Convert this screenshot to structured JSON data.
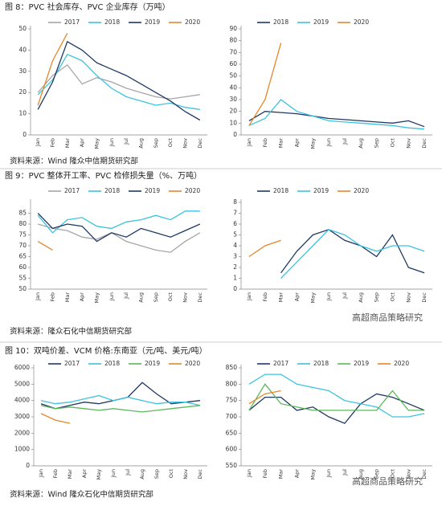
{
  "captions": [
    "图 8：PVC 社会库存、PVC 企业库存（万吨）",
    "图 9：PVC 整体开工率、PVC 检修损失量（%、万吨）",
    "图 10：双吨价差、VCM 价格:东南亚（元/吨、美元/吨）"
  ],
  "sources": [
    "资料来源：Wind 隆众中信期货研究部",
    "资料来源：隆众石化中信期货研究部",
    "资料来源：Wind 隆众石化中信期货研究部"
  ],
  "watermark": "高超商品策略研究",
  "chart_data": [
    {
      "type": "line",
      "categories": [
        "Jan",
        "Feb",
        "Mar",
        "Apr",
        "May",
        "Jun",
        "Jul",
        "Aug",
        "Sep",
        "Oct",
        "Nov",
        "Dec"
      ],
      "ylim": [
        0,
        50
      ],
      "yticks": [
        0,
        10,
        20,
        30,
        40,
        50
      ],
      "series": [
        {
          "name": "2017",
          "color": "#a6a6a6",
          "values": [
            20,
            28,
            33,
            24,
            27,
            25,
            22,
            20,
            18,
            17,
            18,
            19
          ]
        },
        {
          "name": "2018",
          "color": "#3cc3e0",
          "values": [
            19,
            26,
            38,
            35,
            28,
            22,
            18,
            16,
            14,
            15,
            13,
            12
          ]
        },
        {
          "name": "2019",
          "color": "#1f3864",
          "values": [
            12,
            25,
            44,
            40,
            34,
            31,
            28,
            24,
            20,
            16,
            11,
            7
          ]
        },
        {
          "name": "2020",
          "color": "#e6862a",
          "values": [
            14,
            35,
            48,
            null,
            null,
            null,
            null,
            null,
            null,
            null,
            null,
            null
          ]
        }
      ]
    },
    {
      "type": "line",
      "categories": [
        "Jan",
        "Feb",
        "Mar",
        "Apr",
        "May",
        "Jun",
        "Jul",
        "Aug",
        "Sep",
        "Oct",
        "Nov",
        "Dec"
      ],
      "ylim": [
        0,
        90
      ],
      "yticks": [
        0,
        10,
        20,
        30,
        40,
        50,
        60,
        70,
        80,
        90
      ],
      "series": [
        {
          "name": "2018",
          "color": "#1f3864",
          "values": [
            12,
            20,
            19,
            18,
            16,
            14,
            13,
            12,
            11,
            10,
            12,
            7
          ]
        },
        {
          "name": "2019",
          "color": "#3cc3e0",
          "values": [
            8,
            14,
            30,
            20,
            16,
            12,
            11,
            10,
            9,
            8,
            6,
            5
          ]
        },
        {
          "name": "2020",
          "color": "#e6862a",
          "values": [
            8,
            30,
            78,
            null,
            null,
            null,
            null,
            null,
            null,
            null,
            null,
            null
          ]
        }
      ]
    },
    {
      "type": "line",
      "categories": [
        "Jan",
        "Feb",
        "Mar",
        "Apr",
        "May",
        "Jun",
        "Jul",
        "Aug",
        "Sep",
        "Oct",
        "Nov",
        "Dec"
      ],
      "ylim": [
        50,
        90
      ],
      "yticks": [
        50,
        55,
        60,
        65,
        70,
        75,
        80,
        85
      ],
      "series": [
        {
          "name": "2017",
          "color": "#a6a6a6",
          "values": [
            80,
            78,
            77,
            74,
            73,
            76,
            72,
            70,
            68,
            67,
            72,
            76
          ]
        },
        {
          "name": "2018",
          "color": "#3cc3e0",
          "values": [
            84,
            76,
            82,
            83,
            79,
            78,
            81,
            82,
            84,
            82,
            86,
            86
          ]
        },
        {
          "name": "2019",
          "color": "#1f3864",
          "values": [
            85,
            78,
            80,
            79,
            72,
            76,
            74,
            78,
            76,
            74,
            77,
            80
          ]
        },
        {
          "name": "2020",
          "color": "#e6862a",
          "values": [
            72,
            68,
            null,
            null,
            null,
            null,
            null,
            null,
            null,
            null,
            null,
            null
          ]
        }
      ]
    },
    {
      "type": "line",
      "categories": [
        "Jan",
        "Feb",
        "Mar",
        "Apr",
        "May",
        "Jun",
        "Jul",
        "Aug",
        "Sep",
        "Oct",
        "Nov",
        "Dec"
      ],
      "ylim": [
        0,
        8
      ],
      "yticks": [
        0,
        1,
        2,
        3,
        4,
        5,
        6,
        7,
        8
      ],
      "series": [
        {
          "name": "2018",
          "color": "#1f3864",
          "values": [
            null,
            null,
            1.5,
            3.5,
            5,
            5.5,
            4.5,
            4,
            3,
            5,
            2,
            1.5
          ]
        },
        {
          "name": "2019",
          "color": "#3cc3e0",
          "values": [
            null,
            null,
            1,
            2.5,
            4,
            5.5,
            5,
            4,
            3.5,
            4,
            4,
            3.5
          ]
        },
        {
          "name": "2020",
          "color": "#e6862a",
          "values": [
            3,
            4,
            4.5,
            null,
            null,
            null,
            null,
            null,
            null,
            null,
            null,
            null
          ]
        }
      ]
    },
    {
      "type": "line",
      "categories": [
        "Jan",
        "Feb",
        "Mar",
        "Apr",
        "May",
        "Jun",
        "Jul",
        "Aug",
        "Sep",
        "Oct",
        "Nov",
        "Dec"
      ],
      "ylim": [
        0,
        6000
      ],
      "yticks": [
        0,
        1000,
        2000,
        3000,
        4000,
        5000,
        6000
      ],
      "series": [
        {
          "name": "2017",
          "color": "#1f3864",
          "values": [
            3800,
            3500,
            3700,
            3900,
            3800,
            4000,
            4200,
            5100,
            4400,
            3800,
            3900,
            4000
          ]
        },
        {
          "name": "2018",
          "color": "#3cc3e0",
          "values": [
            4000,
            3800,
            3900,
            4100,
            4300,
            4000,
            4200,
            4000,
            3800,
            3900,
            3900,
            3700
          ]
        },
        {
          "name": "2019",
          "color": "#5cb85c",
          "values": [
            3700,
            3500,
            3600,
            3500,
            3400,
            3500,
            3400,
            3300,
            3400,
            3500,
            3600,
            3700
          ]
        },
        {
          "name": "2020",
          "color": "#e6862a",
          "values": [
            3200,
            2800,
            2600,
            null,
            null,
            null,
            null,
            null,
            null,
            null,
            null,
            null
          ]
        }
      ]
    },
    {
      "type": "line",
      "categories": [
        "Jan",
        "Feb",
        "Mar",
        "Apr",
        "May",
        "Jun",
        "Jul",
        "Aug",
        "Sep",
        "Oct",
        "Nov",
        "Dec"
      ],
      "ylim": [
        550,
        850
      ],
      "yticks": [
        550,
        600,
        650,
        700,
        750,
        800,
        850
      ],
      "series": [
        {
          "name": "2017",
          "color": "#1f3864",
          "values": [
            720,
            760,
            760,
            720,
            730,
            700,
            680,
            740,
            770,
            760,
            740,
            720
          ]
        },
        {
          "name": "2018",
          "color": "#3cc3e0",
          "values": [
            800,
            830,
            830,
            800,
            790,
            780,
            750,
            740,
            730,
            700,
            700,
            710
          ]
        },
        {
          "name": "2019",
          "color": "#5cb85c",
          "values": [
            720,
            800,
            740,
            730,
            720,
            720,
            720,
            720,
            720,
            780,
            720,
            720
          ]
        },
        {
          "name": "2020",
          "color": "#e6862a",
          "values": [
            740,
            770,
            780,
            null,
            null,
            null,
            null,
            null,
            null,
            null,
            null,
            null
          ]
        }
      ]
    }
  ]
}
